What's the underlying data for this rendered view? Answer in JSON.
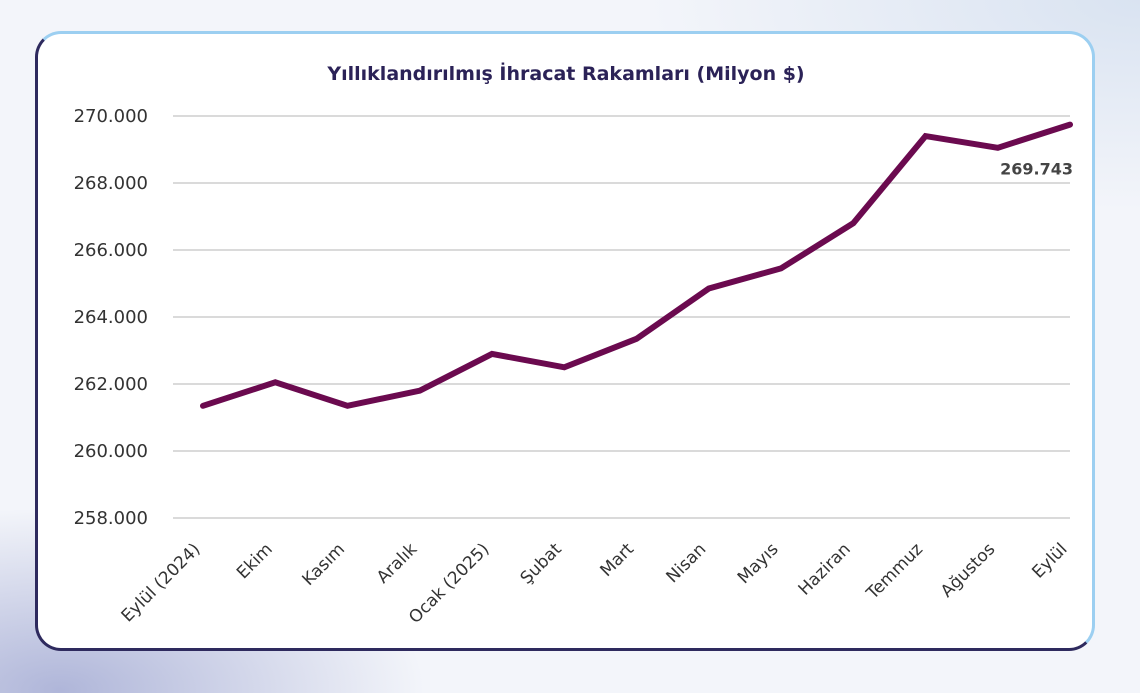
{
  "chart_data": {
    "type": "line",
    "title": "Yıllıklandırılmış İhracat Rakamları (Milyon $)",
    "xlabel": "",
    "ylabel": "",
    "categories": [
      "Eylül (2024)",
      "Ekim",
      "Kasım",
      "Aralık",
      "Ocak (2025)",
      "Şubat",
      "Mart",
      "Nisan",
      "Mayıs",
      "Haziran",
      "Temmuz",
      "Ağustos",
      "Eylül"
    ],
    "series": [
      {
        "values": [
          261350,
          262050,
          261350,
          261800,
          262900,
          262500,
          263350,
          264850,
          265450,
          266800,
          269400,
          269050,
          269743
        ],
        "color": "#6b0a4f"
      }
    ],
    "ylim": [
      258000,
      270000
    ],
    "yticks": [
      258000,
      260000,
      262000,
      264000,
      266000,
      268000,
      270000
    ],
    "ytick_labels": [
      "258.000",
      "260.000",
      "262.000",
      "264.000",
      "266.000",
      "268.000",
      "270.000"
    ],
    "annotations": [
      {
        "category": "Eylül",
        "text": "269.743"
      }
    ],
    "grid": true,
    "legend": "none"
  }
}
